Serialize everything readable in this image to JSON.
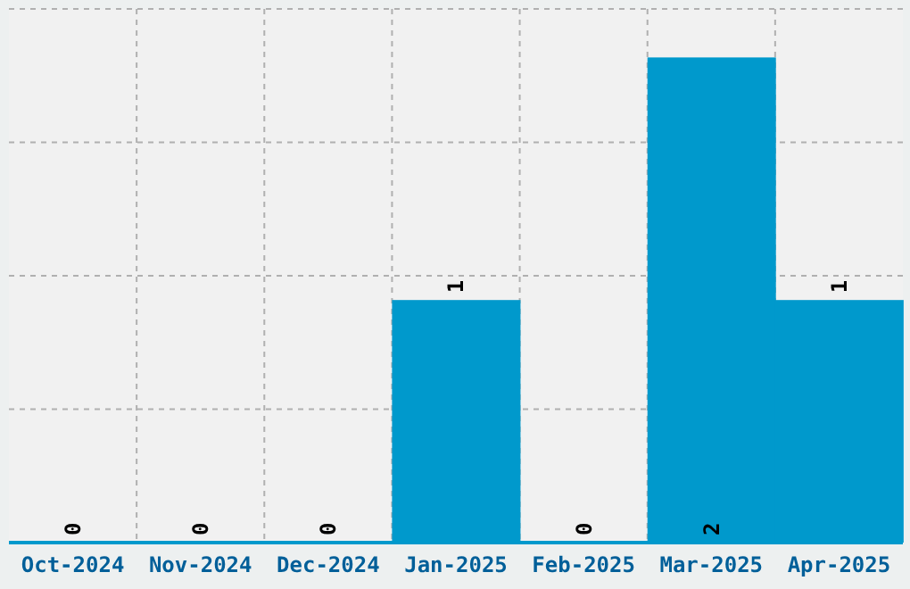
{
  "chart_data": {
    "type": "bar",
    "categories": [
      "Oct-2024",
      "Nov-2024",
      "Dec-2024",
      "Jan-2025",
      "Feb-2025",
      "Mar-2025",
      "Apr-2025"
    ],
    "values": [
      0,
      0,
      0,
      1,
      0,
      2,
      1
    ],
    "color": "#0099cc",
    "ylim": [
      0,
      2.2
    ],
    "yticks": [
      {
        "value": 0,
        "label": null
      },
      {
        "value": 0.55,
        "label": null
      },
      {
        "value": 1.1,
        "label": null
      },
      {
        "value": 1.65,
        "label": null
      },
      {
        "value": 2.2,
        "label": null
      }
    ],
    "grid": true,
    "tick_labels": "x",
    "data_labels": true
  }
}
